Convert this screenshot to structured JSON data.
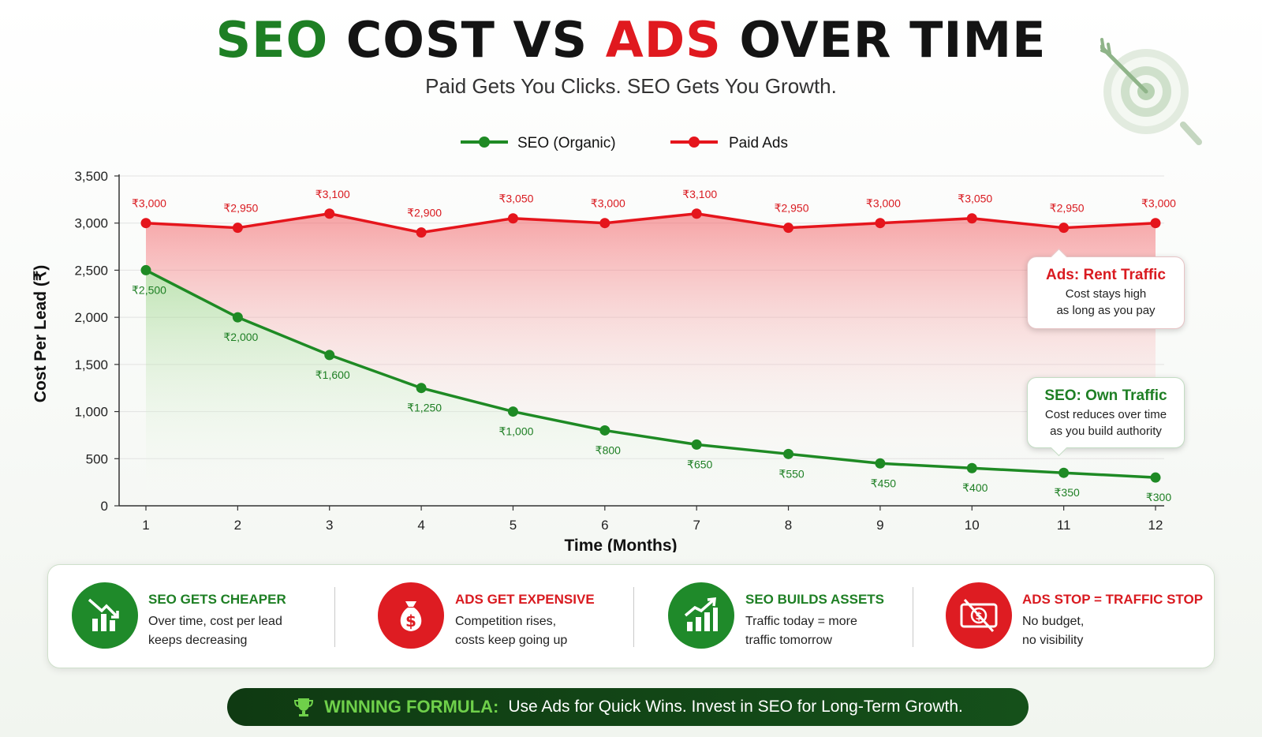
{
  "header": {
    "title_part1": "SEO",
    "title_part2": "COST VS",
    "title_part3": "ADS",
    "title_part4": "OVER TIME",
    "subtitle": "Paid Gets You Clicks. SEO Gets You Growth."
  },
  "colors": {
    "seo_green": "#1e7f24",
    "ads_red": "#e0191f",
    "dark_banner": "#0f3a12",
    "banner_accent": "#6fd04a"
  },
  "chart_data": {
    "type": "line",
    "x": [
      1,
      2,
      3,
      4,
      5,
      6,
      7,
      8,
      9,
      10,
      11,
      12
    ],
    "xlabel": "Time (Months)",
    "ylabel": "Cost Per Lead (₹)",
    "ylim": [
      0,
      3500
    ],
    "yticks": [
      0,
      500,
      1000,
      1500,
      2000,
      2500,
      3000,
      3500
    ],
    "ytick_labels": [
      "0",
      "500",
      "1,000",
      "1,500",
      "2,000",
      "2,500",
      "3,000",
      "3,500"
    ],
    "grid": true,
    "legend_position": "top-center",
    "series": [
      {
        "name": "SEO (Organic)",
        "color": "#1e8a24",
        "values": [
          2500,
          2000,
          1600,
          1250,
          1000,
          800,
          650,
          550,
          450,
          400,
          350,
          300
        ],
        "labels": [
          "₹2,500",
          "₹2,000",
          "₹1,600",
          "₹1,250",
          "₹1,000",
          "₹800",
          "₹650",
          "₹550",
          "₹450",
          "₹400",
          "₹350",
          "₹300"
        ]
      },
      {
        "name": "Paid Ads",
        "color": "#e5151c",
        "values": [
          3000,
          2950,
          3100,
          2900,
          3050,
          3000,
          3100,
          2950,
          3000,
          3050,
          2950,
          3000
        ],
        "labels": [
          "₹3,000",
          "₹2,950",
          "₹3,100",
          "₹2,900",
          "₹3,050",
          "₹3,000",
          "₹3,100",
          "₹2,950",
          "₹3,000",
          "₹3,050",
          "₹2,950",
          "₹3,000"
        ]
      }
    ],
    "annotations": {
      "ads": {
        "title": "Ads: Rent Traffic",
        "line1": "Cost stays high",
        "line2": "as long as you pay"
      },
      "seo": {
        "title": "SEO: Own Traffic",
        "line1": "Cost reduces over time",
        "line2": "as you build authority"
      }
    }
  },
  "info_panel": {
    "items": [
      {
        "title": "SEO GETS CHEAPER",
        "line1": "Over time, cost per lead",
        "line2": "keeps decreasing",
        "icon": "chart-down-icon",
        "color": "green"
      },
      {
        "title": "ADS GET EXPENSIVE",
        "line1": "Competition rises,",
        "line2": "costs keep going up",
        "icon": "money-bag-icon",
        "color": "red"
      },
      {
        "title": "SEO BUILDS ASSETS",
        "line1": "Traffic today = more",
        "line2": "traffic tomorrow",
        "icon": "chart-up-icon",
        "color": "green"
      },
      {
        "title": "ADS STOP = TRAFFIC STOP",
        "line1": "No budget,",
        "line2": "no visibility",
        "icon": "no-money-icon",
        "color": "red"
      }
    ]
  },
  "banner": {
    "head": "WINNING FORMULA:",
    "body": "Use Ads for Quick Wins. Invest in SEO for Long-Term Growth.",
    "icon": "trophy-icon"
  },
  "decor": {
    "icon": "target-arrow-icon"
  }
}
